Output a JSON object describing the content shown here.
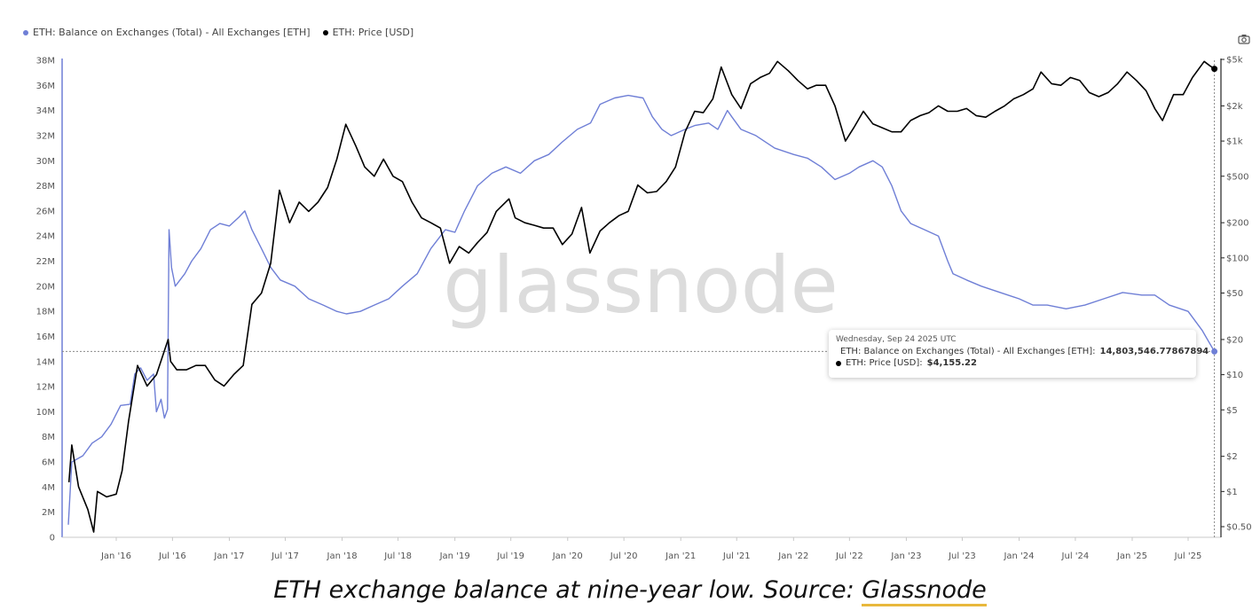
{
  "legend": {
    "balance_label": "ETH: Balance on Exchanges (Total) - All Exchanges [ETH]",
    "price_label": "ETH: Price [USD]"
  },
  "watermark": "glassnode",
  "tooltip": {
    "date": "Wednesday, Sep 24 2025 UTC",
    "balance_label": "ETH: Balance on Exchanges (Total) - All Exchanges [ETH]:",
    "balance_value": "14,803,546.77867894",
    "price_label": "ETH: Price [USD]:",
    "price_value": "$4,155.22"
  },
  "caption": {
    "text": "ETH exchange balance at nine-year low. Source: ",
    "source": "Glassnode"
  },
  "chart_data": {
    "type": "line",
    "colors": {
      "balance": "#6f7fd6",
      "price": "#000000"
    },
    "x_ticks": [
      "Jan '16",
      "Jul '16",
      "Jan '17",
      "Jul '17",
      "Jan '18",
      "Jul '18",
      "Jan '19",
      "Jul '19",
      "Jan '20",
      "Jul '20",
      "Jan '21",
      "Jul '21",
      "Jan '22",
      "Jul '22",
      "Jan '23",
      "Jul '23",
      "Jan '24",
      "Jul '24",
      "Jan '25",
      "Jul '25"
    ],
    "y_left": {
      "scale": "linear",
      "ylim": [
        0,
        38000000
      ],
      "ticks": [
        0,
        2000000,
        4000000,
        6000000,
        8000000,
        10000000,
        12000000,
        14000000,
        16000000,
        18000000,
        20000000,
        22000000,
        24000000,
        26000000,
        28000000,
        30000000,
        32000000,
        34000000,
        36000000,
        38000000
      ],
      "tick_labels": [
        "0",
        "2M",
        "4M",
        "6M",
        "8M",
        "10M",
        "12M",
        "14M",
        "16M",
        "18M",
        "20M",
        "22M",
        "24M",
        "26M",
        "28M",
        "30M",
        "32M",
        "34M",
        "36M",
        "38M"
      ]
    },
    "y_right": {
      "scale": "log",
      "ylim": [
        0.4,
        5500
      ],
      "ticks": [
        0.5,
        1,
        2,
        5,
        10,
        20,
        50,
        100,
        200,
        500,
        1000,
        2000,
        5000
      ],
      "tick_labels": [
        "$0.50",
        "$1",
        "$2",
        "$5",
        "$10",
        "$20",
        "$50",
        "$100",
        "$200",
        "$500",
        "$1k",
        "$2k",
        "$5k"
      ]
    },
    "series": [
      {
        "name": "ETH: Balance on Exchanges (Total) - All Exchanges [ETH]",
        "axis": "left",
        "points": [
          [
            "2015-07-30",
            1000000
          ],
          [
            "2015-08-10",
            6000000
          ],
          [
            "2015-09-15",
            6500000
          ],
          [
            "2015-10-15",
            7500000
          ],
          [
            "2015-11-15",
            8000000
          ],
          [
            "2015-12-15",
            9000000
          ],
          [
            "2016-01-15",
            10500000
          ],
          [
            "2016-02-15",
            10600000
          ],
          [
            "2016-03-01",
            13000000
          ],
          [
            "2016-03-20",
            13500000
          ],
          [
            "2016-04-10",
            12500000
          ],
          [
            "2016-05-01",
            13000000
          ],
          [
            "2016-05-10",
            10000000
          ],
          [
            "2016-05-25",
            11000000
          ],
          [
            "2016-06-05",
            9500000
          ],
          [
            "2016-06-15",
            10200000
          ],
          [
            "2016-06-20",
            24500000
          ],
          [
            "2016-06-28",
            21500000
          ],
          [
            "2016-07-10",
            20000000
          ],
          [
            "2016-08-10",
            21000000
          ],
          [
            "2016-09-01",
            22000000
          ],
          [
            "2016-10-01",
            23000000
          ],
          [
            "2016-11-01",
            24500000
          ],
          [
            "2016-12-01",
            25000000
          ],
          [
            "2017-01-01",
            24800000
          ],
          [
            "2017-02-01",
            25500000
          ],
          [
            "2017-02-20",
            26000000
          ],
          [
            "2017-03-15",
            24500000
          ],
          [
            "2017-04-15",
            23000000
          ],
          [
            "2017-05-15",
            21500000
          ],
          [
            "2017-06-15",
            20500000
          ],
          [
            "2017-08-01",
            20000000
          ],
          [
            "2017-09-15",
            19000000
          ],
          [
            "2017-11-01",
            18500000
          ],
          [
            "2017-12-15",
            18000000
          ],
          [
            "2018-01-15",
            17800000
          ],
          [
            "2018-03-01",
            18000000
          ],
          [
            "2018-04-15",
            18500000
          ],
          [
            "2018-06-01",
            19000000
          ],
          [
            "2018-07-15",
            20000000
          ],
          [
            "2018-09-01",
            21000000
          ],
          [
            "2018-10-15",
            23000000
          ],
          [
            "2018-12-01",
            24500000
          ],
          [
            "2019-01-01",
            24300000
          ],
          [
            "2019-02-01",
            26000000
          ],
          [
            "2019-03-15",
            28000000
          ],
          [
            "2019-05-01",
            29000000
          ],
          [
            "2019-06-15",
            29500000
          ],
          [
            "2019-08-01",
            29000000
          ],
          [
            "2019-09-15",
            30000000
          ],
          [
            "2019-11-01",
            30500000
          ],
          [
            "2019-12-15",
            31500000
          ],
          [
            "2020-02-01",
            32500000
          ],
          [
            "2020-03-15",
            33000000
          ],
          [
            "2020-04-15",
            34500000
          ],
          [
            "2020-06-01",
            35000000
          ],
          [
            "2020-07-15",
            35200000
          ],
          [
            "2020-09-01",
            35000000
          ],
          [
            "2020-10-01",
            33500000
          ],
          [
            "2020-11-01",
            32500000
          ],
          [
            "2020-12-01",
            32000000
          ],
          [
            "2021-01-15",
            32500000
          ],
          [
            "2021-02-15",
            32800000
          ],
          [
            "2021-04-01",
            33000000
          ],
          [
            "2021-05-01",
            32500000
          ],
          [
            "2021-06-01",
            34000000
          ],
          [
            "2021-06-15",
            33500000
          ],
          [
            "2021-07-15",
            32500000
          ],
          [
            "2021-09-01",
            32000000
          ],
          [
            "2021-11-01",
            31000000
          ],
          [
            "2022-01-01",
            30500000
          ],
          [
            "2022-02-15",
            30200000
          ],
          [
            "2022-04-01",
            29500000
          ],
          [
            "2022-05-15",
            28500000
          ],
          [
            "2022-07-01",
            29000000
          ],
          [
            "2022-08-01",
            29500000
          ],
          [
            "2022-09-15",
            30000000
          ],
          [
            "2022-10-15",
            29500000
          ],
          [
            "2022-11-15",
            28000000
          ],
          [
            "2022-12-15",
            26000000
          ],
          [
            "2023-01-15",
            25000000
          ],
          [
            "2023-03-01",
            24500000
          ],
          [
            "2023-04-15",
            24000000
          ],
          [
            "2023-05-15",
            22000000
          ],
          [
            "2023-06-01",
            21000000
          ],
          [
            "2023-07-15",
            20500000
          ],
          [
            "2023-09-01",
            20000000
          ],
          [
            "2023-11-01",
            19500000
          ],
          [
            "2024-01-01",
            19000000
          ],
          [
            "2024-02-15",
            18500000
          ],
          [
            "2024-04-01",
            18500000
          ],
          [
            "2024-06-01",
            18200000
          ],
          [
            "2024-08-01",
            18500000
          ],
          [
            "2024-10-01",
            19000000
          ],
          [
            "2024-12-01",
            19500000
          ],
          [
            "2025-02-01",
            19300000
          ],
          [
            "2025-03-15",
            19300000
          ],
          [
            "2025-05-01",
            18500000
          ],
          [
            "2025-07-01",
            18000000
          ],
          [
            "2025-08-15",
            16500000
          ],
          [
            "2025-09-24",
            14803547
          ]
        ]
      },
      {
        "name": "ETH: Price [USD]",
        "axis": "right",
        "points": [
          [
            "2015-08-01",
            1.2
          ],
          [
            "2015-08-10",
            2.5
          ],
          [
            "2015-09-01",
            1.1
          ],
          [
            "2015-10-01",
            0.7
          ],
          [
            "2015-10-20",
            0.45
          ],
          [
            "2015-11-01",
            1.0
          ],
          [
            "2015-12-01",
            0.9
          ],
          [
            "2016-01-01",
            0.95
          ],
          [
            "2016-01-20",
            1.5
          ],
          [
            "2016-02-10",
            4.0
          ],
          [
            "2016-03-10",
            12
          ],
          [
            "2016-04-10",
            8
          ],
          [
            "2016-05-10",
            10
          ],
          [
            "2016-06-17",
            20
          ],
          [
            "2016-06-25",
            13
          ],
          [
            "2016-07-15",
            11
          ],
          [
            "2016-08-15",
            11
          ],
          [
            "2016-09-15",
            12
          ],
          [
            "2016-10-15",
            12
          ],
          [
            "2016-11-15",
            9
          ],
          [
            "2016-12-15",
            8
          ],
          [
            "2017-01-15",
            10
          ],
          [
            "2017-02-15",
            12
          ],
          [
            "2017-03-15",
            40
          ],
          [
            "2017-04-15",
            50
          ],
          [
            "2017-05-15",
            90
          ],
          [
            "2017-06-12",
            380
          ],
          [
            "2017-07-15",
            200
          ],
          [
            "2017-08-15",
            300
          ],
          [
            "2017-09-15",
            250
          ],
          [
            "2017-10-15",
            300
          ],
          [
            "2017-11-15",
            400
          ],
          [
            "2017-12-15",
            700
          ],
          [
            "2018-01-13",
            1390
          ],
          [
            "2018-02-15",
            900
          ],
          [
            "2018-03-15",
            600
          ],
          [
            "2018-04-15",
            500
          ],
          [
            "2018-05-15",
            700
          ],
          [
            "2018-06-15",
            500
          ],
          [
            "2018-07-15",
            450
          ],
          [
            "2018-08-15",
            300
          ],
          [
            "2018-09-15",
            220
          ],
          [
            "2018-10-15",
            200
          ],
          [
            "2018-11-15",
            180
          ],
          [
            "2018-12-15",
            90
          ],
          [
            "2019-01-15",
            125
          ],
          [
            "2019-02-15",
            110
          ],
          [
            "2019-03-15",
            135
          ],
          [
            "2019-04-15",
            165
          ],
          [
            "2019-05-15",
            250
          ],
          [
            "2019-06-25",
            320
          ],
          [
            "2019-07-15",
            220
          ],
          [
            "2019-08-15",
            200
          ],
          [
            "2019-09-15",
            190
          ],
          [
            "2019-10-15",
            180
          ],
          [
            "2019-11-15",
            180
          ],
          [
            "2019-12-15",
            130
          ],
          [
            "2020-01-15",
            160
          ],
          [
            "2020-02-15",
            270
          ],
          [
            "2020-03-13",
            110
          ],
          [
            "2020-04-15",
            170
          ],
          [
            "2020-05-15",
            200
          ],
          [
            "2020-06-15",
            230
          ],
          [
            "2020-07-15",
            250
          ],
          [
            "2020-08-15",
            420
          ],
          [
            "2020-09-15",
            360
          ],
          [
            "2020-10-15",
            370
          ],
          [
            "2020-11-15",
            450
          ],
          [
            "2020-12-15",
            600
          ],
          [
            "2021-01-15",
            1200
          ],
          [
            "2021-02-15",
            1800
          ],
          [
            "2021-03-15",
            1750
          ],
          [
            "2021-04-15",
            2300
          ],
          [
            "2021-05-12",
            4300
          ],
          [
            "2021-06-15",
            2500
          ],
          [
            "2021-07-15",
            1900
          ],
          [
            "2021-08-15",
            3100
          ],
          [
            "2021-09-15",
            3500
          ],
          [
            "2021-10-15",
            3800
          ],
          [
            "2021-11-10",
            4800
          ],
          [
            "2021-12-15",
            4000
          ],
          [
            "2022-01-15",
            3300
          ],
          [
            "2022-02-15",
            2800
          ],
          [
            "2022-03-15",
            3000
          ],
          [
            "2022-04-15",
            3000
          ],
          [
            "2022-05-15",
            2000
          ],
          [
            "2022-06-18",
            1000
          ],
          [
            "2022-07-15",
            1300
          ],
          [
            "2022-08-15",
            1800
          ],
          [
            "2022-09-15",
            1400
          ],
          [
            "2022-10-15",
            1300
          ],
          [
            "2022-11-15",
            1200
          ],
          [
            "2022-12-15",
            1200
          ],
          [
            "2023-01-15",
            1500
          ],
          [
            "2023-02-15",
            1650
          ],
          [
            "2023-03-15",
            1750
          ],
          [
            "2023-04-15",
            2000
          ],
          [
            "2023-05-15",
            1800
          ],
          [
            "2023-06-15",
            1800
          ],
          [
            "2023-07-15",
            1900
          ],
          [
            "2023-08-15",
            1650
          ],
          [
            "2023-09-15",
            1600
          ],
          [
            "2023-10-15",
            1800
          ],
          [
            "2023-11-15",
            2000
          ],
          [
            "2023-12-15",
            2300
          ],
          [
            "2024-01-15",
            2500
          ],
          [
            "2024-02-15",
            2800
          ],
          [
            "2024-03-12",
            3900
          ],
          [
            "2024-04-15",
            3100
          ],
          [
            "2024-05-15",
            3000
          ],
          [
            "2024-06-15",
            3500
          ],
          [
            "2024-07-15",
            3300
          ],
          [
            "2024-08-15",
            2600
          ],
          [
            "2024-09-15",
            2400
          ],
          [
            "2024-10-15",
            2600
          ],
          [
            "2024-11-15",
            3100
          ],
          [
            "2024-12-15",
            3900
          ],
          [
            "2025-01-15",
            3300
          ],
          [
            "2025-02-15",
            2700
          ],
          [
            "2025-03-15",
            1900
          ],
          [
            "2025-04-09",
            1500
          ],
          [
            "2025-05-15",
            2500
          ],
          [
            "2025-06-15",
            2500
          ],
          [
            "2025-07-15",
            3500
          ],
          [
            "2025-08-22",
            4800
          ],
          [
            "2025-09-10",
            4400
          ],
          [
            "2025-09-24",
            4155.22
          ]
        ]
      }
    ],
    "marker_date": "2025-09-24",
    "grid": false,
    "legend_position": "top-left"
  }
}
